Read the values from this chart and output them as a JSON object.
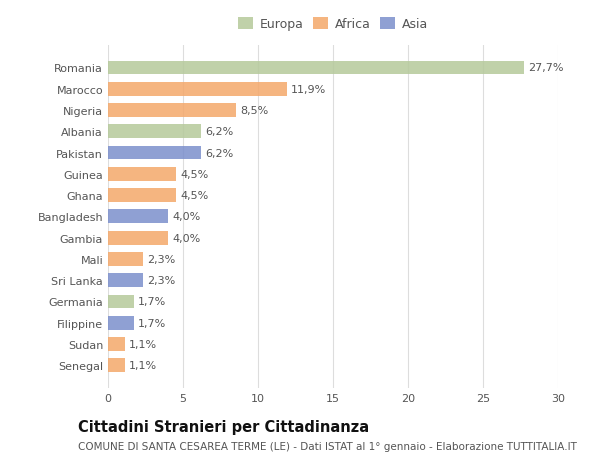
{
  "countries": [
    "Senegal",
    "Sudan",
    "Filippine",
    "Germania",
    "Sri Lanka",
    "Mali",
    "Gambia",
    "Bangladesh",
    "Ghana",
    "Guinea",
    "Pakistan",
    "Albania",
    "Nigeria",
    "Marocco",
    "Romania"
  ],
  "values": [
    1.1,
    1.1,
    1.7,
    1.7,
    2.3,
    2.3,
    4.0,
    4.0,
    4.5,
    4.5,
    6.2,
    6.2,
    8.5,
    11.9,
    27.7
  ],
  "labels": [
    "1,1%",
    "1,1%",
    "1,7%",
    "1,7%",
    "2,3%",
    "2,3%",
    "4,0%",
    "4,0%",
    "4,5%",
    "4,5%",
    "6,2%",
    "6,2%",
    "8,5%",
    "11,9%",
    "27,7%"
  ],
  "continents": [
    "Africa",
    "Africa",
    "Asia",
    "Europa",
    "Asia",
    "Africa",
    "Africa",
    "Asia",
    "Africa",
    "Africa",
    "Asia",
    "Europa",
    "Africa",
    "Africa",
    "Europa"
  ],
  "colors": {
    "Europa": "#b5c99a",
    "Africa": "#f4a86a",
    "Asia": "#7b8fcc"
  },
  "legend_labels": [
    "Europa",
    "Africa",
    "Asia"
  ],
  "title": "Cittadini Stranieri per Cittadinanza",
  "subtitle": "COMUNE DI SANTA CESAREA TERME (LE) - Dati ISTAT al 1° gennaio - Elaborazione TUTTITALIA.IT",
  "xlim": [
    0,
    30
  ],
  "xticks": [
    0,
    5,
    10,
    15,
    20,
    25,
    30
  ],
  "background_color": "#ffffff",
  "grid_color": "#dddddd",
  "bar_height": 0.65,
  "label_fontsize": 8,
  "tick_fontsize": 8,
  "title_fontsize": 10.5,
  "subtitle_fontsize": 7.5
}
